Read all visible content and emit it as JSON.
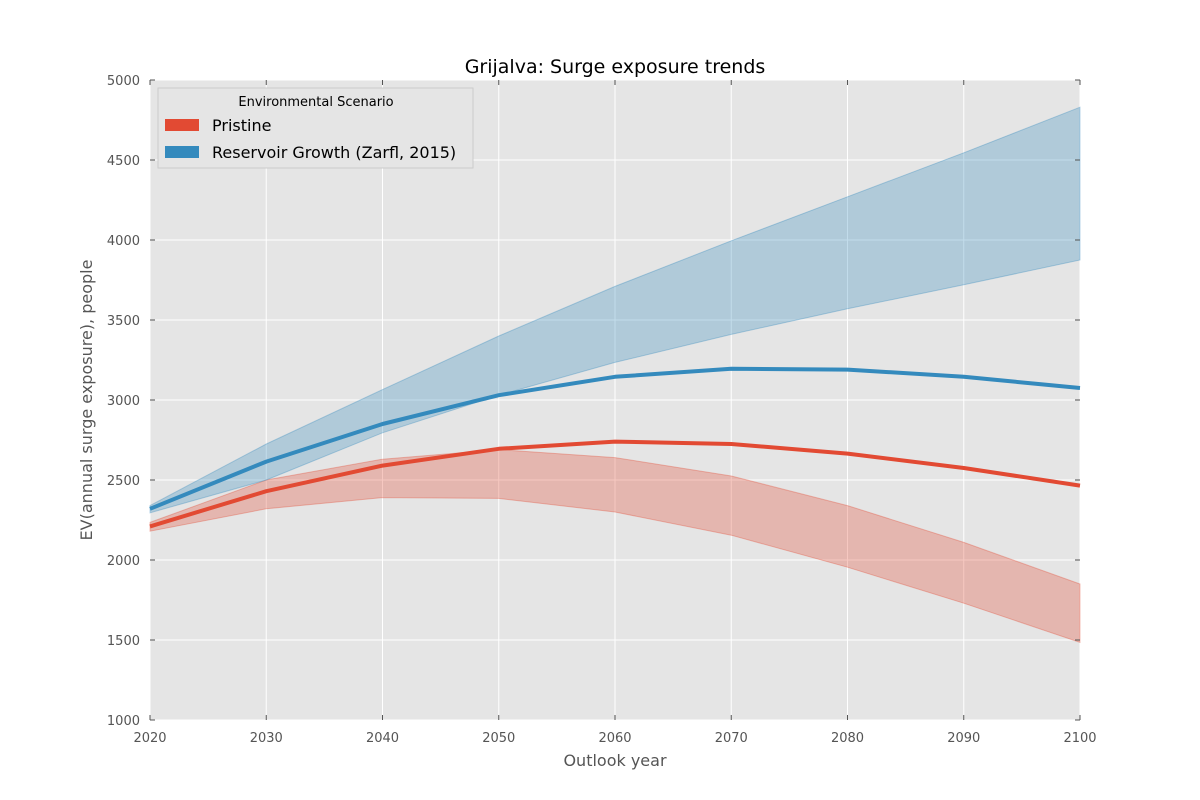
{
  "chart_data": {
    "type": "line",
    "title": "Grijalva: Surge exposure trends",
    "xlabel": "Outlook year",
    "ylabel": "EV(annual surge exposure), people",
    "xlim": [
      2020,
      2100
    ],
    "ylim": [
      1000,
      5000
    ],
    "xticks": [
      2020,
      2030,
      2040,
      2050,
      2060,
      2070,
      2080,
      2090,
      2100
    ],
    "yticks": [
      1000,
      1500,
      2000,
      2500,
      3000,
      3500,
      4000,
      4500,
      5000
    ],
    "grid": true,
    "legend": {
      "title": "Environmental Scenario",
      "placement": "top-left"
    },
    "x": [
      2020,
      2030,
      2040,
      2050,
      2060,
      2070,
      2080,
      2090,
      2100
    ],
    "series": [
      {
        "name": "Pristine",
        "color": "#e24a33",
        "values": [
          2210,
          2430,
          2590,
          2695,
          2740,
          2725,
          2665,
          2575,
          2465
        ],
        "lower": [
          2180,
          2320,
          2390,
          2385,
          2300,
          2155,
          1955,
          1730,
          1485
        ],
        "upper": [
          2235,
          2500,
          2630,
          2690,
          2640,
          2525,
          2340,
          2110,
          1850
        ]
      },
      {
        "name": "Reservoir Growth (Zarfl, 2015)",
        "color": "#348abd",
        "values": [
          2320,
          2615,
          2850,
          3030,
          3145,
          3195,
          3190,
          3145,
          3075
        ],
        "lower": [
          2295,
          2500,
          2795,
          3030,
          3235,
          3410,
          3570,
          3720,
          3875
        ],
        "upper": [
          2340,
          2725,
          3065,
          3400,
          3710,
          3995,
          4270,
          4545,
          4830
        ]
      }
    ]
  },
  "colors": {
    "plot_background": "#e5e5e5",
    "grid": "#ffffff"
  }
}
